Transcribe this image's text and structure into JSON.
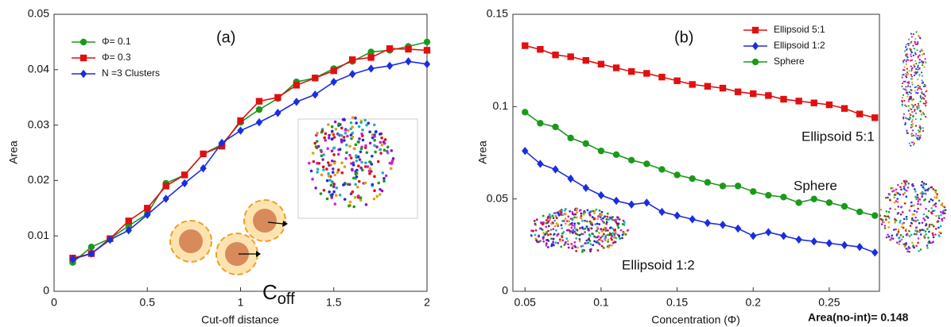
{
  "chart_data": [
    {
      "type": "line",
      "title": "(a)",
      "x_label": "Cut-off distance",
      "y_label": "Area",
      "x": [
        0.1,
        0.2,
        0.3,
        0.4,
        0.5,
        0.6,
        0.7,
        0.8,
        0.9,
        1.0,
        1.1,
        1.2,
        1.3,
        1.4,
        1.5,
        1.6,
        1.7,
        1.8,
        1.9,
        2.0
      ],
      "series": [
        {
          "name": "Φ= 0.1",
          "color": "#1a9a1a",
          "marker": "circle",
          "values": [
            0.0052,
            0.008,
            0.0095,
            0.0118,
            0.014,
            0.0195,
            0.021,
            0.0248,
            0.0265,
            0.0305,
            0.0328,
            0.0348,
            0.0378,
            0.0385,
            0.0402,
            0.0415,
            0.0432,
            0.0435,
            0.0442,
            0.045
          ]
        },
        {
          "name": "Φ= 0.3",
          "color": "#e01010",
          "marker": "square",
          "values": [
            0.006,
            0.0068,
            0.0095,
            0.0127,
            0.015,
            0.019,
            0.021,
            0.0248,
            0.0262,
            0.0308,
            0.0343,
            0.035,
            0.0372,
            0.0385,
            0.0398,
            0.0418,
            0.0422,
            0.0438,
            0.0437,
            0.0435
          ]
        },
        {
          "name": "N =3 Clusters",
          "color": "#1a2ee0",
          "marker": "diamond",
          "values": [
            0.0058,
            0.0068,
            0.0093,
            0.011,
            0.0138,
            0.0167,
            0.0195,
            0.0222,
            0.0268,
            0.029,
            0.0305,
            0.0322,
            0.0342,
            0.0355,
            0.0378,
            0.0392,
            0.0402,
            0.0407,
            0.0415,
            0.041
          ]
        }
      ],
      "xlim": [
        0,
        2
      ],
      "xticks": [
        0,
        0.5,
        1,
        1.5,
        2
      ],
      "ylim": [
        0,
        0.05
      ],
      "yticks": [
        0,
        0.01,
        0.02,
        0.03,
        0.04,
        0.05
      ],
      "cutoff_label": {
        "base": "C",
        "subscript": "off"
      }
    },
    {
      "type": "line",
      "title": "(b)",
      "x_label": "Concentration (Φ)",
      "y_label": "Area",
      "x": [
        0.05,
        0.06,
        0.07,
        0.08,
        0.09,
        0.1,
        0.11,
        0.12,
        0.13,
        0.14,
        0.15,
        0.16,
        0.17,
        0.18,
        0.19,
        0.2,
        0.21,
        0.22,
        0.23,
        0.24,
        0.25,
        0.26,
        0.27,
        0.28
      ],
      "series": [
        {
          "name": "Ellipsoid 5:1",
          "color": "#e01010",
          "marker": "square",
          "values": [
            0.133,
            0.131,
            0.128,
            0.127,
            0.125,
            0.123,
            0.121,
            0.119,
            0.118,
            0.116,
            0.114,
            0.112,
            0.111,
            0.11,
            0.108,
            0.107,
            0.106,
            0.104,
            0.103,
            0.102,
            0.101,
            0.099,
            0.096,
            0.094
          ]
        },
        {
          "name": "Ellipsoid 1:2",
          "color": "#1a2ee0",
          "marker": "diamond",
          "values": [
            0.076,
            0.069,
            0.066,
            0.061,
            0.056,
            0.052,
            0.049,
            0.047,
            0.048,
            0.043,
            0.041,
            0.039,
            0.037,
            0.036,
            0.034,
            0.03,
            0.032,
            0.03,
            0.028,
            0.027,
            0.026,
            0.025,
            0.024,
            0.021
          ]
        },
        {
          "name": "Sphere",
          "color": "#1a9a1a",
          "marker": "circle",
          "values": [
            0.097,
            0.091,
            0.089,
            0.083,
            0.08,
            0.076,
            0.074,
            0.071,
            0.069,
            0.066,
            0.063,
            0.061,
            0.059,
            0.057,
            0.057,
            0.054,
            0.052,
            0.051,
            0.048,
            0.05,
            0.048,
            0.046,
            0.043,
            0.041
          ]
        }
      ],
      "xlim": [
        0.042,
        0.283
      ],
      "xticks": [
        0.05,
        0.1,
        0.15,
        0.2,
        0.25
      ],
      "ylim": [
        0,
        0.15
      ],
      "yticks": [
        0,
        0.05,
        0.1,
        0.15
      ],
      "annotations": [
        "Ellipsoid 5:1",
        "Sphere",
        "Ellipsoid 1:2",
        "Area(no-int)= 0.148"
      ]
    }
  ]
}
